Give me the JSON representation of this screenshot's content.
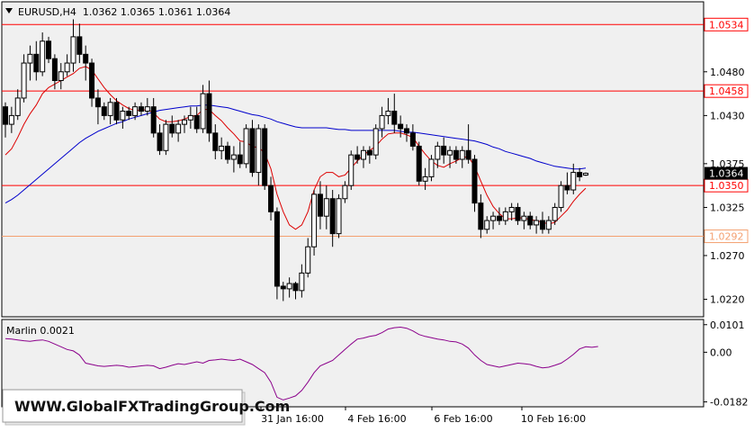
{
  "symbol_header": "EURUSD,H4  1.0362 1.0365 1.0361 1.0364",
  "indicator_header": "Marlin 0.0021",
  "watermark": "WWW.GlobalFXTradingGroup.Com",
  "colors": {
    "background": "#ffffff",
    "plot_bg": "#f0f0f0",
    "candle": "#000000",
    "ma_fast": "#dd0000",
    "ma_slow": "#0000cc",
    "level_line": "#ff0000",
    "marlin": "#8b008b",
    "price_tag": "#000000"
  },
  "chart_data": [
    {
      "type": "candlestick",
      "title": "EURUSD,H4",
      "ohlc_last": {
        "open": 1.0362,
        "high": 1.0365,
        "low": 1.0361,
        "close": 1.0364
      },
      "ylim": [
        1.02,
        1.056
      ],
      "y_ticks": [
        "1.0480",
        "1.0430",
        "1.0375",
        "1.0325",
        "1.0270",
        "1.0220"
      ],
      "x_ticks": [
        "31 Jan 16:00",
        "4 Feb 16:00",
        "6 Feb 16:00",
        "10 Feb 16:00"
      ],
      "grid": false,
      "levels": [
        {
          "value": 1.0534,
          "label": "1.0534",
          "color": "#ff0000"
        },
        {
          "value": 1.0458,
          "label": "1.0458",
          "color": "#ff0000"
        },
        {
          "value": 1.035,
          "label": "1.0350",
          "color": "#ff0000"
        },
        {
          "value": 1.0292,
          "label": "1.0292",
          "color": "#f4a070"
        }
      ],
      "current_price": {
        "value": 1.0364,
        "label": "1.0364"
      },
      "candles": [
        [
          1.044,
          1.0445,
          1.0405,
          1.042
        ],
        [
          1.042,
          1.044,
          1.041,
          1.043
        ],
        [
          1.043,
          1.046,
          1.0425,
          1.045
        ],
        [
          1.045,
          1.05,
          1.0445,
          1.049
        ],
        [
          1.049,
          1.051,
          1.047,
          1.05
        ],
        [
          1.05,
          1.0515,
          1.047,
          1.048
        ],
        [
          1.048,
          1.0525,
          1.0475,
          1.0515
        ],
        [
          1.0515,
          1.052,
          1.049,
          1.0495
        ],
        [
          1.0495,
          1.05,
          1.046,
          1.047
        ],
        [
          1.047,
          1.049,
          1.046,
          1.048
        ],
        [
          1.048,
          1.05,
          1.0475,
          1.049
        ],
        [
          1.049,
          1.054,
          1.048,
          1.052
        ],
        [
          1.052,
          1.0535,
          1.049,
          1.05
        ],
        [
          1.05,
          1.051,
          1.047,
          1.049
        ],
        [
          1.049,
          1.0495,
          1.044,
          1.045
        ],
        [
          1.045,
          1.046,
          1.042,
          1.044
        ],
        [
          1.044,
          1.0445,
          1.0425,
          1.043
        ],
        [
          1.043,
          1.045,
          1.042,
          1.0445
        ],
        [
          1.0445,
          1.045,
          1.042,
          1.0425
        ],
        [
          1.0425,
          1.044,
          1.0415,
          1.0435
        ],
        [
          1.0435,
          1.044,
          1.0425,
          1.043
        ],
        [
          1.043,
          1.0445,
          1.0425,
          1.044
        ],
        [
          1.044,
          1.0445,
          1.043,
          1.0435
        ],
        [
          1.0435,
          1.045,
          1.043,
          1.044
        ],
        [
          1.044,
          1.045,
          1.0405,
          1.041
        ],
        [
          1.041,
          1.042,
          1.0385,
          1.039
        ],
        [
          1.039,
          1.0425,
          1.0385,
          1.042
        ],
        [
          1.042,
          1.043,
          1.0405,
          1.041
        ],
        [
          1.041,
          1.0425,
          1.04,
          1.042
        ],
        [
          1.042,
          1.043,
          1.041,
          1.0425
        ],
        [
          1.0425,
          1.044,
          1.0415,
          1.043
        ],
        [
          1.043,
          1.044,
          1.041,
          1.0415
        ],
        [
          1.0415,
          1.0465,
          1.041,
          1.0455
        ],
        [
          1.0455,
          1.047,
          1.04,
          1.041
        ],
        [
          1.041,
          1.042,
          1.038,
          1.039
        ],
        [
          1.039,
          1.0405,
          1.038,
          1.0395
        ],
        [
          1.0395,
          1.04,
          1.0375,
          1.038
        ],
        [
          1.038,
          1.0395,
          1.0365,
          1.0385
        ],
        [
          1.0385,
          1.04,
          1.037,
          1.0375
        ],
        [
          1.0375,
          1.042,
          1.037,
          1.0415
        ],
        [
          1.0415,
          1.0425,
          1.036,
          1.0365
        ],
        [
          1.0365,
          1.042,
          1.035,
          1.0415
        ],
        [
          1.0415,
          1.042,
          1.0345,
          1.035
        ],
        [
          1.035,
          1.036,
          1.031,
          1.032
        ],
        [
          1.032,
          1.0325,
          1.022,
          1.0235
        ],
        [
          1.0235,
          1.024,
          1.0218,
          1.0232
        ],
        [
          1.0232,
          1.0245,
          1.0222,
          1.0238
        ],
        [
          1.0238,
          1.024,
          1.022,
          1.023
        ],
        [
          1.023,
          1.026,
          1.0222,
          1.025
        ],
        [
          1.025,
          1.029,
          1.0245,
          1.028
        ],
        [
          1.028,
          1.0345,
          1.027,
          1.034
        ],
        [
          1.034,
          1.0355,
          1.03,
          1.0315
        ],
        [
          1.0315,
          1.035,
          1.03,
          1.0335
        ],
        [
          1.0335,
          1.0345,
          1.028,
          1.0295
        ],
        [
          1.0295,
          1.034,
          1.029,
          1.0335
        ],
        [
          1.0335,
          1.0355,
          1.033,
          1.035
        ],
        [
          1.035,
          1.039,
          1.0345,
          1.0385
        ],
        [
          1.0385,
          1.0395,
          1.0375,
          1.038
        ],
        [
          1.038,
          1.0395,
          1.037,
          1.039
        ],
        [
          1.039,
          1.0395,
          1.0375,
          1.0385
        ],
        [
          1.0385,
          1.042,
          1.038,
          1.0415
        ],
        [
          1.0415,
          1.044,
          1.0405,
          1.043
        ],
        [
          1.043,
          1.045,
          1.042,
          1.0435
        ],
        [
          1.0435,
          1.0455,
          1.041,
          1.042
        ],
        [
          1.042,
          1.043,
          1.0405,
          1.0415
        ],
        [
          1.0415,
          1.042,
          1.04,
          1.041
        ],
        [
          1.041,
          1.042,
          1.039,
          1.0395
        ],
        [
          1.0395,
          1.04,
          1.035,
          1.0355
        ],
        [
          1.0355,
          1.037,
          1.0345,
          1.036
        ],
        [
          1.036,
          1.0385,
          1.0355,
          1.038
        ],
        [
          1.038,
          1.04,
          1.037,
          1.0395
        ],
        [
          1.0395,
          1.0405,
          1.0375,
          1.0385
        ],
        [
          1.0385,
          1.0395,
          1.037,
          1.039
        ],
        [
          1.039,
          1.0395,
          1.0375,
          1.038
        ],
        [
          1.038,
          1.0395,
          1.037,
          1.039
        ],
        [
          1.039,
          1.042,
          1.0375,
          1.038
        ],
        [
          1.038,
          1.0385,
          1.032,
          1.033
        ],
        [
          1.033,
          1.034,
          1.029,
          1.03
        ],
        [
          1.03,
          1.0315,
          1.0295,
          1.031
        ],
        [
          1.031,
          1.032,
          1.03,
          1.0315
        ],
        [
          1.0315,
          1.0325,
          1.0305,
          1.031
        ],
        [
          1.031,
          1.0325,
          1.0305,
          1.032
        ],
        [
          1.032,
          1.033,
          1.031,
          1.0325
        ],
        [
          1.0325,
          1.033,
          1.0305,
          1.031
        ],
        [
          1.031,
          1.032,
          1.03,
          1.0315
        ],
        [
          1.0315,
          1.032,
          1.03,
          1.0305
        ],
        [
          1.0305,
          1.0315,
          1.0295,
          1.031
        ],
        [
          1.031,
          1.032,
          1.0295,
          1.03
        ],
        [
          1.03,
          1.0315,
          1.0295,
          1.031
        ],
        [
          1.031,
          1.033,
          1.0305,
          1.0325
        ],
        [
          1.0325,
          1.0355,
          1.032,
          1.035
        ],
        [
          1.035,
          1.0365,
          1.034,
          1.0345
        ],
        [
          1.0345,
          1.0375,
          1.034,
          1.0365
        ],
        [
          1.0365,
          1.037,
          1.0355,
          1.036
        ],
        [
          1.0362,
          1.0365,
          1.0361,
          1.0364
        ]
      ],
      "ma_fast": [
        1.0385,
        1.0392,
        1.0405,
        1.042,
        1.0432,
        1.0442,
        1.0455,
        1.0462,
        1.0466,
        1.047,
        1.0474,
        1.0478,
        1.0484,
        1.0486,
        1.0482,
        1.0472,
        1.0462,
        1.0454,
        1.0447,
        1.0442,
        1.0438,
        1.0436,
        1.0436,
        1.0437,
        1.0433,
        1.0426,
        1.0423,
        1.0423,
        1.0424,
        1.0426,
        1.0429,
        1.043,
        1.0437,
        1.0437,
        1.043,
        1.0424,
        1.0416,
        1.0409,
        1.0401,
        1.04,
        1.0394,
        1.0394,
        1.0387,
        1.0369,
        1.034,
        1.032,
        1.0305,
        1.03,
        1.0305,
        1.032,
        1.0345,
        1.036,
        1.0365,
        1.0365,
        1.036,
        1.0362,
        1.037,
        1.0378,
        1.0385,
        1.039,
        1.0395,
        1.0403,
        1.0409,
        1.041,
        1.041,
        1.0408,
        1.0405,
        1.0395,
        1.0386,
        1.0378,
        1.0373,
        1.0371,
        1.0375,
        1.0378,
        1.0382,
        1.0383,
        1.0372,
        1.0355,
        1.0339,
        1.0326,
        1.0318,
        1.0312,
        1.0312,
        1.0313,
        1.0313,
        1.0311,
        1.031,
        1.0308,
        1.0306,
        1.0308,
        1.0315,
        1.0322,
        1.0332,
        1.034,
        1.0347
      ],
      "ma_slow": [
        1.033,
        1.0334,
        1.0339,
        1.0345,
        1.0351,
        1.0357,
        1.0363,
        1.0369,
        1.0375,
        1.0381,
        1.0387,
        1.0393,
        1.0399,
        1.0404,
        1.0408,
        1.0412,
        1.0415,
        1.0418,
        1.0421,
        1.0423,
        1.0426,
        1.0428,
        1.043,
        1.0432,
        1.0434,
        1.0436,
        1.0437,
        1.0438,
        1.0439,
        1.044,
        1.0441,
        1.0441,
        1.0442,
        1.0442,
        1.0441,
        1.044,
        1.0439,
        1.0437,
        1.0435,
        1.0433,
        1.0431,
        1.043,
        1.0428,
        1.0426,
        1.0423,
        1.0421,
        1.0419,
        1.0417,
        1.0416,
        1.0416,
        1.0416,
        1.0416,
        1.0416,
        1.0415,
        1.0414,
        1.0414,
        1.0413,
        1.0413,
        1.0413,
        1.0413,
        1.0413,
        1.0413,
        1.0413,
        1.0413,
        1.0412,
        1.0411,
        1.0411,
        1.041,
        1.0409,
        1.0408,
        1.0407,
        1.0406,
        1.0405,
        1.0404,
        1.0403,
        1.0402,
        1.0401,
        1.0399,
        1.0397,
        1.0394,
        1.0392,
        1.0389,
        1.0387,
        1.0385,
        1.0383,
        1.0381,
        1.0378,
        1.0376,
        1.0374,
        1.0372,
        1.0371,
        1.037,
        1.0369,
        1.0369,
        1.037
      ]
    },
    {
      "type": "line",
      "title": "Marlin 0.0021",
      "ylim": [
        -0.02,
        0.012
      ],
      "y_ticks": [
        "0.0101",
        "0.00",
        "-0.0182"
      ],
      "zero_line": true,
      "values": [
        0.005,
        0.0048,
        0.0045,
        0.0042,
        0.004,
        0.0043,
        0.0045,
        0.004,
        0.003,
        0.002,
        0.001,
        0.0005,
        -0.001,
        -0.004,
        -0.0045,
        -0.005,
        -0.0052,
        -0.005,
        -0.0048,
        -0.005,
        -0.0055,
        -0.0053,
        -0.005,
        -0.0048,
        -0.005,
        -0.006,
        -0.0055,
        -0.0048,
        -0.0042,
        -0.0045,
        -0.004,
        -0.0035,
        -0.004,
        -0.003,
        -0.0028,
        -0.0025,
        -0.0028,
        -0.003,
        -0.0025,
        -0.0035,
        -0.0045,
        -0.006,
        -0.0075,
        -0.011,
        -0.0165,
        -0.0175,
        -0.0168,
        -0.016,
        -0.014,
        -0.011,
        -0.0075,
        -0.005,
        -0.004,
        -0.003,
        -0.001,
        0.001,
        0.003,
        0.0048,
        0.0052,
        0.0058,
        0.0062,
        0.0072,
        0.0085,
        0.009,
        0.0092,
        0.0088,
        0.0078,
        0.0065,
        0.0058,
        0.0053,
        0.0048,
        0.0045,
        0.004,
        0.0038,
        0.003,
        0.0015,
        -0.001,
        -0.003,
        -0.0045,
        -0.005,
        -0.0055,
        -0.005,
        -0.0045,
        -0.004,
        -0.0042,
        -0.0045,
        -0.0052,
        -0.0057,
        -0.0055,
        -0.0048,
        -0.004,
        -0.0025,
        -0.0008,
        0.0012,
        0.002,
        0.0018,
        0.0021
      ]
    }
  ]
}
